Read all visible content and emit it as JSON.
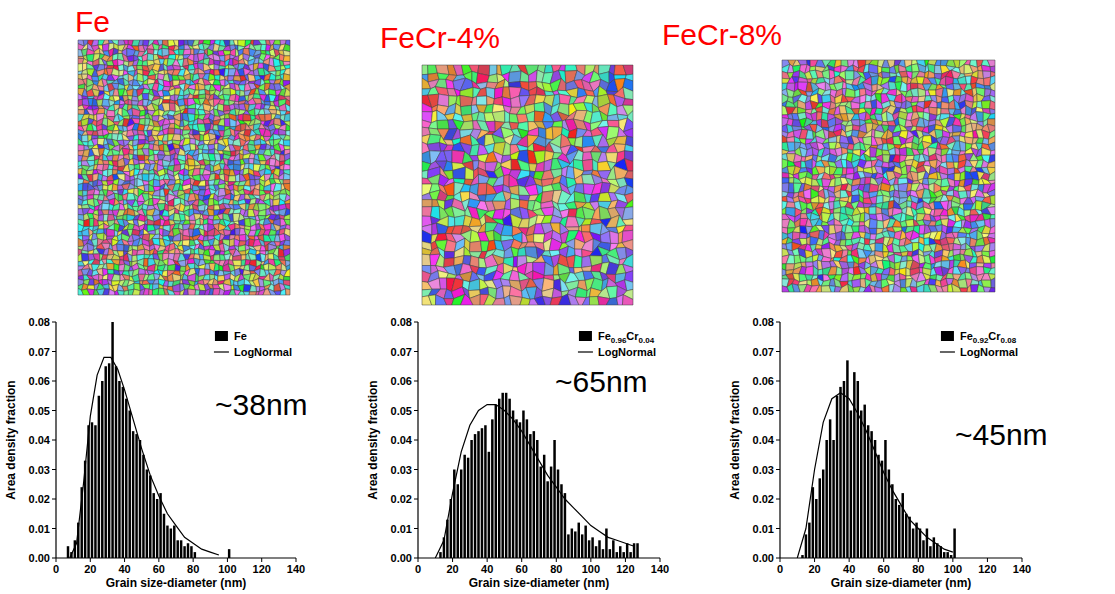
{
  "chart_data": [
    {
      "type": "histogram",
      "title": "Fe",
      "xlabel": "Grain size-diameter (nm)",
      "ylabel": "Area density fraction",
      "xlim": [
        0,
        140
      ],
      "ylim": [
        0,
        0.08
      ],
      "xticks": [
        0,
        20,
        40,
        60,
        80,
        100,
        120,
        140
      ],
      "yticks": [
        {
          "value": 0,
          "label": "0.00"
        },
        {
          "value": 0.01,
          "label": "0.01"
        },
        {
          "value": 0.02,
          "label": "0.02"
        },
        {
          "value": 0.03,
          "label": "0.03"
        },
        {
          "value": 0.04,
          "label": "0.04"
        },
        {
          "value": 0.05,
          "label": "0.05"
        },
        {
          "value": 0.06,
          "label": "0.06"
        },
        {
          "value": 0.07,
          "label": "0.07"
        },
        {
          "value": 0.08,
          "label": "0.08"
        }
      ],
      "grid": false,
      "legend": "upper right",
      "annotations": [
        "~38nm"
      ],
      "series": [
        {
          "name": "Fe",
          "type": "histogram",
          "color": "#000000",
          "bins": [
            6,
            8,
            10,
            12,
            14,
            16,
            18,
            20,
            22,
            24,
            26,
            28,
            30,
            32,
            34,
            36,
            38,
            40,
            42,
            44,
            46,
            48,
            50,
            52,
            54,
            56,
            58,
            60,
            62,
            64,
            66,
            68,
            70,
            72,
            74,
            76,
            78,
            80,
            82,
            84,
            86,
            88,
            90,
            92,
            94,
            96,
            98,
            100,
            102
          ],
          "values": [
            0.004,
            0.002,
            0.006,
            0.012,
            0.024,
            0.033,
            0.045,
            0.046,
            0.045,
            0.055,
            0.06,
            0.065,
            0.066,
            0.08,
            0.065,
            0.06,
            0.058,
            0.054,
            0.05,
            0.043,
            0.042,
            0.04,
            0.035,
            0.03,
            0.028,
            0.022,
            0.02,
            0.022,
            0.015,
            0.011,
            0.01,
            0.011,
            0.006,
            0.006,
            0.004,
            0.005,
            0.004,
            0.002,
            0,
            0,
            0,
            0,
            0,
            0,
            0,
            0,
            0,
            0.003
          ]
        },
        {
          "name": "LogNormal",
          "type": "line",
          "color": "#000000",
          "x": [
            8,
            12,
            16,
            20,
            24,
            28,
            32,
            36,
            40,
            45,
            50,
            55,
            60,
            65,
            70,
            75,
            80,
            85,
            90,
            95
          ],
          "values": [
            0,
            0.005,
            0.025,
            0.048,
            0.062,
            0.068,
            0.068,
            0.064,
            0.057,
            0.047,
            0.037,
            0.028,
            0.021,
            0.015,
            0.011,
            0.007,
            0.005,
            0.003,
            0.002,
            0.001
          ]
        }
      ]
    },
    {
      "type": "histogram",
      "title": "FeCr-4%",
      "xlabel": "Grain size-diameter (nm)",
      "ylabel": "Area density fraction",
      "xlim": [
        0,
        140
      ],
      "ylim": [
        0,
        0.08
      ],
      "xticks": [
        0,
        20,
        40,
        60,
        80,
        100,
        120,
        140
      ],
      "yticks": [
        {
          "value": 0,
          "label": "0.00"
        },
        {
          "value": 0.01,
          "label": "0.01"
        },
        {
          "value": 0.02,
          "label": "0.02"
        },
        {
          "value": 0.03,
          "label": "0.03"
        },
        {
          "value": 0.04,
          "label": "0.04"
        },
        {
          "value": 0.05,
          "label": "0.05"
        },
        {
          "value": 0.06,
          "label": "0.06"
        },
        {
          "value": 0.07,
          "label": "0.07"
        },
        {
          "value": 0.08,
          "label": "0.08"
        }
      ],
      "grid": false,
      "legend": "upper right",
      "annotations": [
        "~65nm"
      ],
      "series": [
        {
          "name": "Fe0.96Cr0.04",
          "type": "histogram",
          "color": "#000000",
          "bins": [
            12,
            14,
            16,
            18,
            20,
            22,
            24,
            26,
            28,
            30,
            32,
            34,
            36,
            38,
            40,
            42,
            44,
            46,
            48,
            50,
            52,
            54,
            56,
            58,
            60,
            62,
            64,
            66,
            68,
            70,
            72,
            74,
            76,
            78,
            80,
            82,
            84,
            86,
            88,
            90,
            92,
            94,
            96,
            98,
            100,
            102,
            104,
            106,
            108,
            110,
            112,
            114,
            116,
            118,
            120,
            122,
            124,
            126,
            128
          ],
          "values": [
            0.002,
            0.007,
            0.013,
            0.02,
            0.03,
            0.025,
            0.03,
            0.035,
            0.034,
            0.04,
            0.042,
            0.043,
            0.044,
            0.045,
            0.036,
            0.047,
            0.052,
            0.054,
            0.056,
            0.056,
            0.054,
            0.05,
            0.047,
            0.046,
            0.05,
            0.047,
            0.042,
            0.043,
            0.04,
            0.031,
            0.035,
            0.026,
            0.031,
            0.04,
            0.03,
            0.025,
            0.022,
            0.008,
            0.01,
            0.009,
            0.012,
            0.008,
            0.011,
            0.006,
            0.007,
            0.004,
            0.006,
            0.003,
            0.01,
            0.003,
            0.006,
            0.002,
            0.004,
            0.002,
            0.005,
            0.002,
            0.005,
            0.005
          ]
        },
        {
          "name": "LogNormal",
          "type": "line",
          "color": "#000000",
          "x": [
            10,
            15,
            20,
            25,
            30,
            35,
            40,
            45,
            50,
            55,
            60,
            65,
            70,
            75,
            80,
            85,
            90,
            95,
            100,
            105,
            110,
            115,
            120,
            125
          ],
          "values": [
            0,
            0.006,
            0.022,
            0.036,
            0.045,
            0.05,
            0.052,
            0.052,
            0.05,
            0.047,
            0.043,
            0.038,
            0.033,
            0.028,
            0.024,
            0.02,
            0.017,
            0.014,
            0.011,
            0.009,
            0.007,
            0.006,
            0.005,
            0.004
          ]
        }
      ]
    },
    {
      "type": "histogram",
      "title": "FeCr-8%",
      "xlabel": "Grain size-diameter (nm)",
      "ylabel": "Area density fraction",
      "xlim": [
        0,
        140
      ],
      "ylim": [
        0,
        0.08
      ],
      "xticks": [
        0,
        20,
        40,
        60,
        80,
        100,
        120,
        140
      ],
      "yticks": [
        {
          "value": 0,
          "label": "0.00"
        },
        {
          "value": 0.01,
          "label": "0.01"
        },
        {
          "value": 0.02,
          "label": "0.02"
        },
        {
          "value": 0.03,
          "label": "0.03"
        },
        {
          "value": 0.04,
          "label": "0.04"
        },
        {
          "value": 0.05,
          "label": "0.05"
        },
        {
          "value": 0.06,
          "label": "0.06"
        },
        {
          "value": 0.07,
          "label": "0.07"
        },
        {
          "value": 0.08,
          "label": "0.08"
        }
      ],
      "grid": false,
      "legend": "upper right",
      "annotations": [
        "~45nm"
      ],
      "series": [
        {
          "name": "Fe0.92Cr0.08",
          "type": "histogram",
          "color": "#000000",
          "bins": [
            12,
            14,
            16,
            18,
            20,
            22,
            24,
            26,
            28,
            30,
            32,
            34,
            36,
            38,
            40,
            42,
            44,
            46,
            48,
            50,
            52,
            54,
            56,
            58,
            60,
            62,
            64,
            66,
            68,
            70,
            72,
            74,
            76,
            78,
            80,
            82,
            84,
            86,
            88,
            90,
            92,
            94,
            96,
            98,
            100,
            102
          ],
          "values": [
            0.001,
            0.008,
            0.012,
            0.024,
            0.02,
            0.027,
            0.03,
            0.04,
            0.047,
            0.04,
            0.055,
            0.058,
            0.06,
            0.067,
            0.05,
            0.063,
            0.06,
            0.05,
            0.052,
            0.045,
            0.043,
            0.04,
            0.035,
            0.033,
            0.04,
            0.03,
            0.025,
            0.02,
            0.018,
            0.022,
            0.015,
            0.014,
            0.01,
            0.012,
            0.01,
            0.006,
            0.01,
            0.004,
            0.007,
            0.005,
            0.004,
            0.002,
            0.002,
            0.001,
            0.01
          ]
        },
        {
          "name": "LogNormal",
          "type": "line",
          "color": "#000000",
          "x": [
            10,
            15,
            20,
            25,
            30,
            35,
            40,
            45,
            50,
            55,
            60,
            65,
            70,
            75,
            80,
            85,
            90,
            95,
            100
          ],
          "values": [
            0,
            0.01,
            0.03,
            0.046,
            0.054,
            0.056,
            0.054,
            0.049,
            0.043,
            0.036,
            0.029,
            0.023,
            0.018,
            0.013,
            0.01,
            0.007,
            0.005,
            0.003,
            0.002
          ]
        }
      ]
    }
  ]
}
